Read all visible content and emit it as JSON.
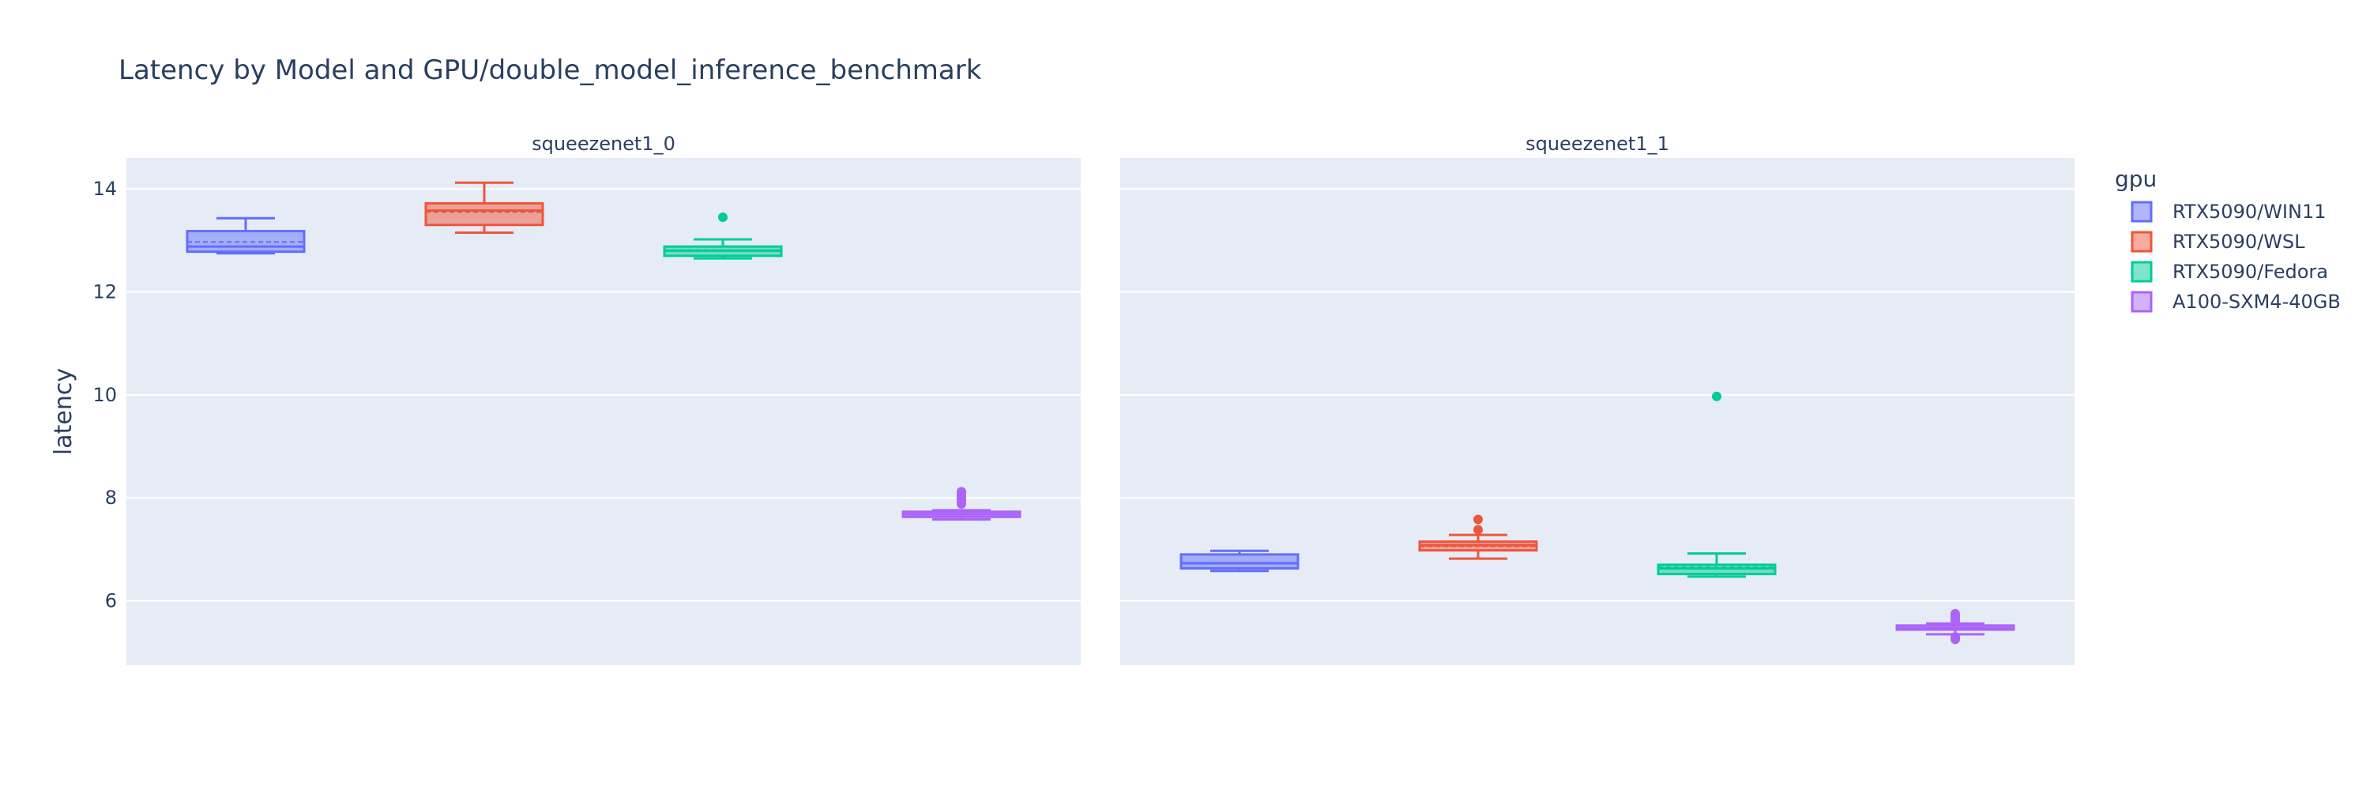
{
  "chart_data": {
    "type": "box",
    "title": "Latency by Model and GPU/double_model_inference_benchmark",
    "ylabel": "latency",
    "ylim": [
      4.75,
      14.6
    ],
    "y_ticks": [
      6,
      8,
      10,
      12,
      14
    ],
    "grid": true,
    "legend": {
      "title": "gpu",
      "position": "right",
      "entries": [
        "RTX5090/WIN11",
        "RTX5090/WSL",
        "RTX5090/Fedora",
        "A100-SXM4-40GB"
      ]
    },
    "series_colors": {
      "RTX5090/WIN11": "#636efa",
      "RTX5090/WSL": "#ef553b",
      "RTX5090/Fedora": "#00cc96",
      "A100-SXM4-40GB": "#ab63fa"
    },
    "panels": [
      {
        "title": "squeezenet1_0",
        "boxes": [
          {
            "gpu": "RTX5090/WIN11",
            "min": 12.75,
            "q1": 12.78,
            "median": 12.88,
            "mean": 12.97,
            "q3": 13.18,
            "max": 13.43,
            "outliers": []
          },
          {
            "gpu": "RTX5090/WSL",
            "min": 13.15,
            "q1": 13.3,
            "median": 13.58,
            "mean": 13.55,
            "q3": 13.72,
            "max": 14.12,
            "outliers": []
          },
          {
            "gpu": "RTX5090/Fedora",
            "min": 12.65,
            "q1": 12.7,
            "median": 12.8,
            "mean": 12.81,
            "q3": 12.88,
            "max": 13.02,
            "outliers": [
              13.45
            ]
          },
          {
            "gpu": "A100-SXM4-40GB",
            "min": 7.58,
            "q1": 7.63,
            "median": 7.68,
            "mean": 7.68,
            "q3": 7.73,
            "max": 7.76,
            "outliers": [
              7.88,
              7.93,
              7.98,
              8.03,
              8.08,
              8.12
            ]
          }
        ]
      },
      {
        "title": "squeezenet1_1",
        "boxes": [
          {
            "gpu": "RTX5090/WIN11",
            "min": 6.58,
            "q1": 6.63,
            "median": 6.73,
            "mean": 6.74,
            "q3": 6.9,
            "max": 6.97,
            "outliers": []
          },
          {
            "gpu": "RTX5090/WSL",
            "min": 6.82,
            "q1": 6.98,
            "median": 7.08,
            "mean": 7.06,
            "q3": 7.15,
            "max": 7.28,
            "outliers": [
              7.38,
              7.58
            ]
          },
          {
            "gpu": "RTX5090/Fedora",
            "min": 6.47,
            "q1": 6.52,
            "median": 6.63,
            "mean": 6.65,
            "q3": 6.7,
            "max": 6.92,
            "outliers": [
              9.97
            ]
          },
          {
            "gpu": "A100-SXM4-40GB",
            "min": 5.35,
            "q1": 5.44,
            "median": 5.47,
            "mean": 5.47,
            "q3": 5.52,
            "max": 5.56,
            "outliers": [
              5.25,
              5.3,
              5.6,
              5.65,
              5.7,
              5.75
            ]
          }
        ]
      }
    ]
  }
}
